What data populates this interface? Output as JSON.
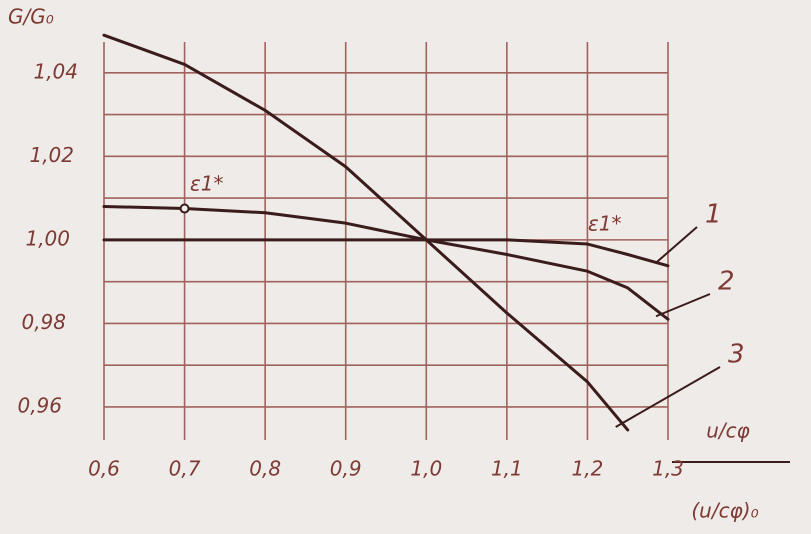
{
  "chart_data": {
    "type": "line",
    "y_label": "G/G₀",
    "x_label_numerator": "u/cφ",
    "x_label_denominator": "(u/cφ)₀",
    "annotations": [
      "ε1*",
      "ε1*"
    ],
    "x": [
      0.6,
      0.7,
      0.8,
      0.9,
      1.0,
      1.1,
      1.2,
      1.25,
      1.3
    ],
    "series": [
      {
        "name": "1",
        "color": "#3b1c1c",
        "values": [
          1.0,
          1.0,
          1.0,
          1.0,
          1.0,
          1.0,
          0.999,
          0.9965,
          0.9938
        ]
      },
      {
        "name": "2",
        "color": "#3b1c1c",
        "values": [
          1.008,
          1.0075,
          1.0065,
          1.004,
          1.0,
          0.9965,
          0.9925,
          0.9885,
          0.981
        ]
      },
      {
        "name": "3",
        "color": "#3b1c1c",
        "values": [
          1.049,
          1.042,
          1.031,
          1.0175,
          1.0,
          0.9825,
          0.966,
          0.9545,
          null
        ]
      }
    ],
    "xlim": [
      0.6,
      1.3
    ],
    "ylim": [
      0.95,
      1.05
    ],
    "xticks": [
      {
        "value": 0.6,
        "label": "0,6"
      },
      {
        "value": 0.7,
        "label": "0,7"
      },
      {
        "value": 0.8,
        "label": "0,8"
      },
      {
        "value": 0.9,
        "label": "0,9"
      },
      {
        "value": 1.0,
        "label": "1,0"
      },
      {
        "value": 1.1,
        "label": "1,1"
      },
      {
        "value": 1.2,
        "label": "1,2"
      },
      {
        "value": 1.3,
        "label": "1,3"
      }
    ],
    "yticks": [
      {
        "value": 0.96,
        "label": "0,96"
      },
      {
        "value": 0.98,
        "label": "0,98"
      },
      {
        "value": 1.0,
        "label": "1,00"
      },
      {
        "value": 1.02,
        "label": "1,02"
      },
      {
        "value": 1.04,
        "label": "1,04"
      }
    ],
    "y_minor_ticks": [
      0.97,
      0.99,
      1.01,
      1.03
    ],
    "grid": true,
    "grid_color": "#a0625c"
  }
}
